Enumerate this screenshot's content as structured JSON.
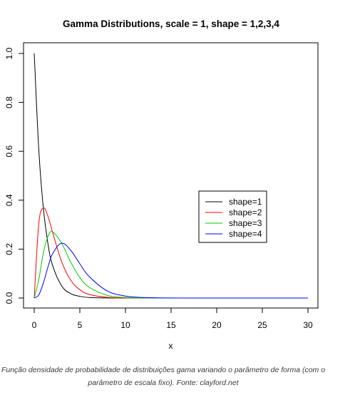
{
  "chart_data": {
    "type": "line",
    "title": "Gamma Distributions, scale = 1, shape = 1,2,3,4",
    "xlabel": "x",
    "ylabel": "",
    "xlim": [
      0,
      30
    ],
    "ylim": [
      0,
      1.0
    ],
    "x_ticks": [
      "0",
      "5",
      "10",
      "15",
      "20",
      "25",
      "30"
    ],
    "y_ticks": [
      "0.0",
      "0.2",
      "0.4",
      "0.6",
      "0.8",
      "1.0"
    ],
    "grid": false,
    "legend_position": "right",
    "series": [
      {
        "name": "shape=1",
        "color": "#000000",
        "x": [
          0,
          0.5,
          1,
          1.5,
          2,
          3,
          4,
          5,
          6,
          8,
          10,
          15,
          20,
          30
        ],
        "y": [
          1.0,
          0.607,
          0.368,
          0.223,
          0.135,
          0.05,
          0.018,
          0.007,
          0.002,
          0.0003,
          0.0,
          0.0,
          0.0,
          0.0
        ]
      },
      {
        "name": "shape=2",
        "color": "#ff0000",
        "x": [
          0,
          0.5,
          1,
          1.5,
          2,
          3,
          4,
          5,
          6,
          8,
          10,
          15,
          20,
          30
        ],
        "y": [
          0.0,
          0.303,
          0.368,
          0.335,
          0.271,
          0.149,
          0.073,
          0.034,
          0.015,
          0.003,
          0.0005,
          0.0,
          0.0,
          0.0
        ]
      },
      {
        "name": "shape=3",
        "color": "#00cd00",
        "x": [
          0,
          0.5,
          1,
          1.5,
          2,
          3,
          4,
          5,
          6,
          8,
          10,
          12,
          15,
          20,
          30
        ],
        "y": [
          0.0,
          0.076,
          0.184,
          0.251,
          0.271,
          0.224,
          0.147,
          0.084,
          0.045,
          0.011,
          0.002,
          0.0004,
          0.0,
          0.0,
          0.0
        ]
      },
      {
        "name": "shape=4",
        "color": "#0000ff",
        "x": [
          0,
          0.5,
          1,
          1.5,
          2,
          3,
          4,
          5,
          6,
          8,
          10,
          12,
          15,
          20,
          30
        ],
        "y": [
          0.0,
          0.013,
          0.061,
          0.126,
          0.18,
          0.224,
          0.195,
          0.14,
          0.089,
          0.029,
          0.008,
          0.002,
          0.0002,
          0.0,
          0.0
        ]
      }
    ]
  },
  "caption": {
    "line1": "Função densidade de probabilidade de distribuições gama variando o parâmetro de forma (com o",
    "line2": "parâmetro de escala fixo). Fonte: clayford.net"
  }
}
